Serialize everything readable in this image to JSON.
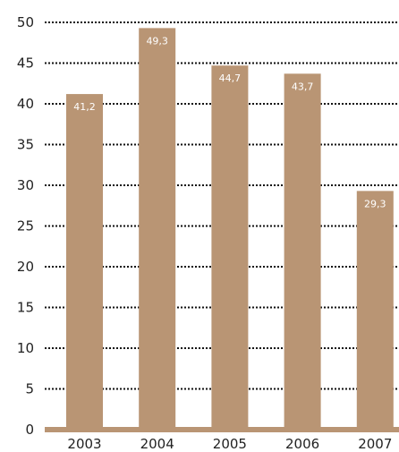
{
  "chart_data": {
    "type": "bar",
    "title": "",
    "xlabel": "",
    "ylabel": "",
    "categories": [
      "2003",
      "2004",
      "2005",
      "2006",
      "2007"
    ],
    "values": [
      41.2,
      49.3,
      44.7,
      43.7,
      29.3
    ],
    "value_labels": [
      "41,2",
      "49,3",
      "44,7",
      "43,7",
      "29,3"
    ],
    "ylim": [
      0,
      50
    ],
    "yticks": [
      0,
      5,
      10,
      15,
      20,
      25,
      30,
      35,
      40,
      45,
      50
    ],
    "grid": true,
    "legend": "none",
    "colors": {
      "bar": "#b99574",
      "grid": "#111111",
      "text": "#222222",
      "data_label": "#ffffff"
    }
  }
}
